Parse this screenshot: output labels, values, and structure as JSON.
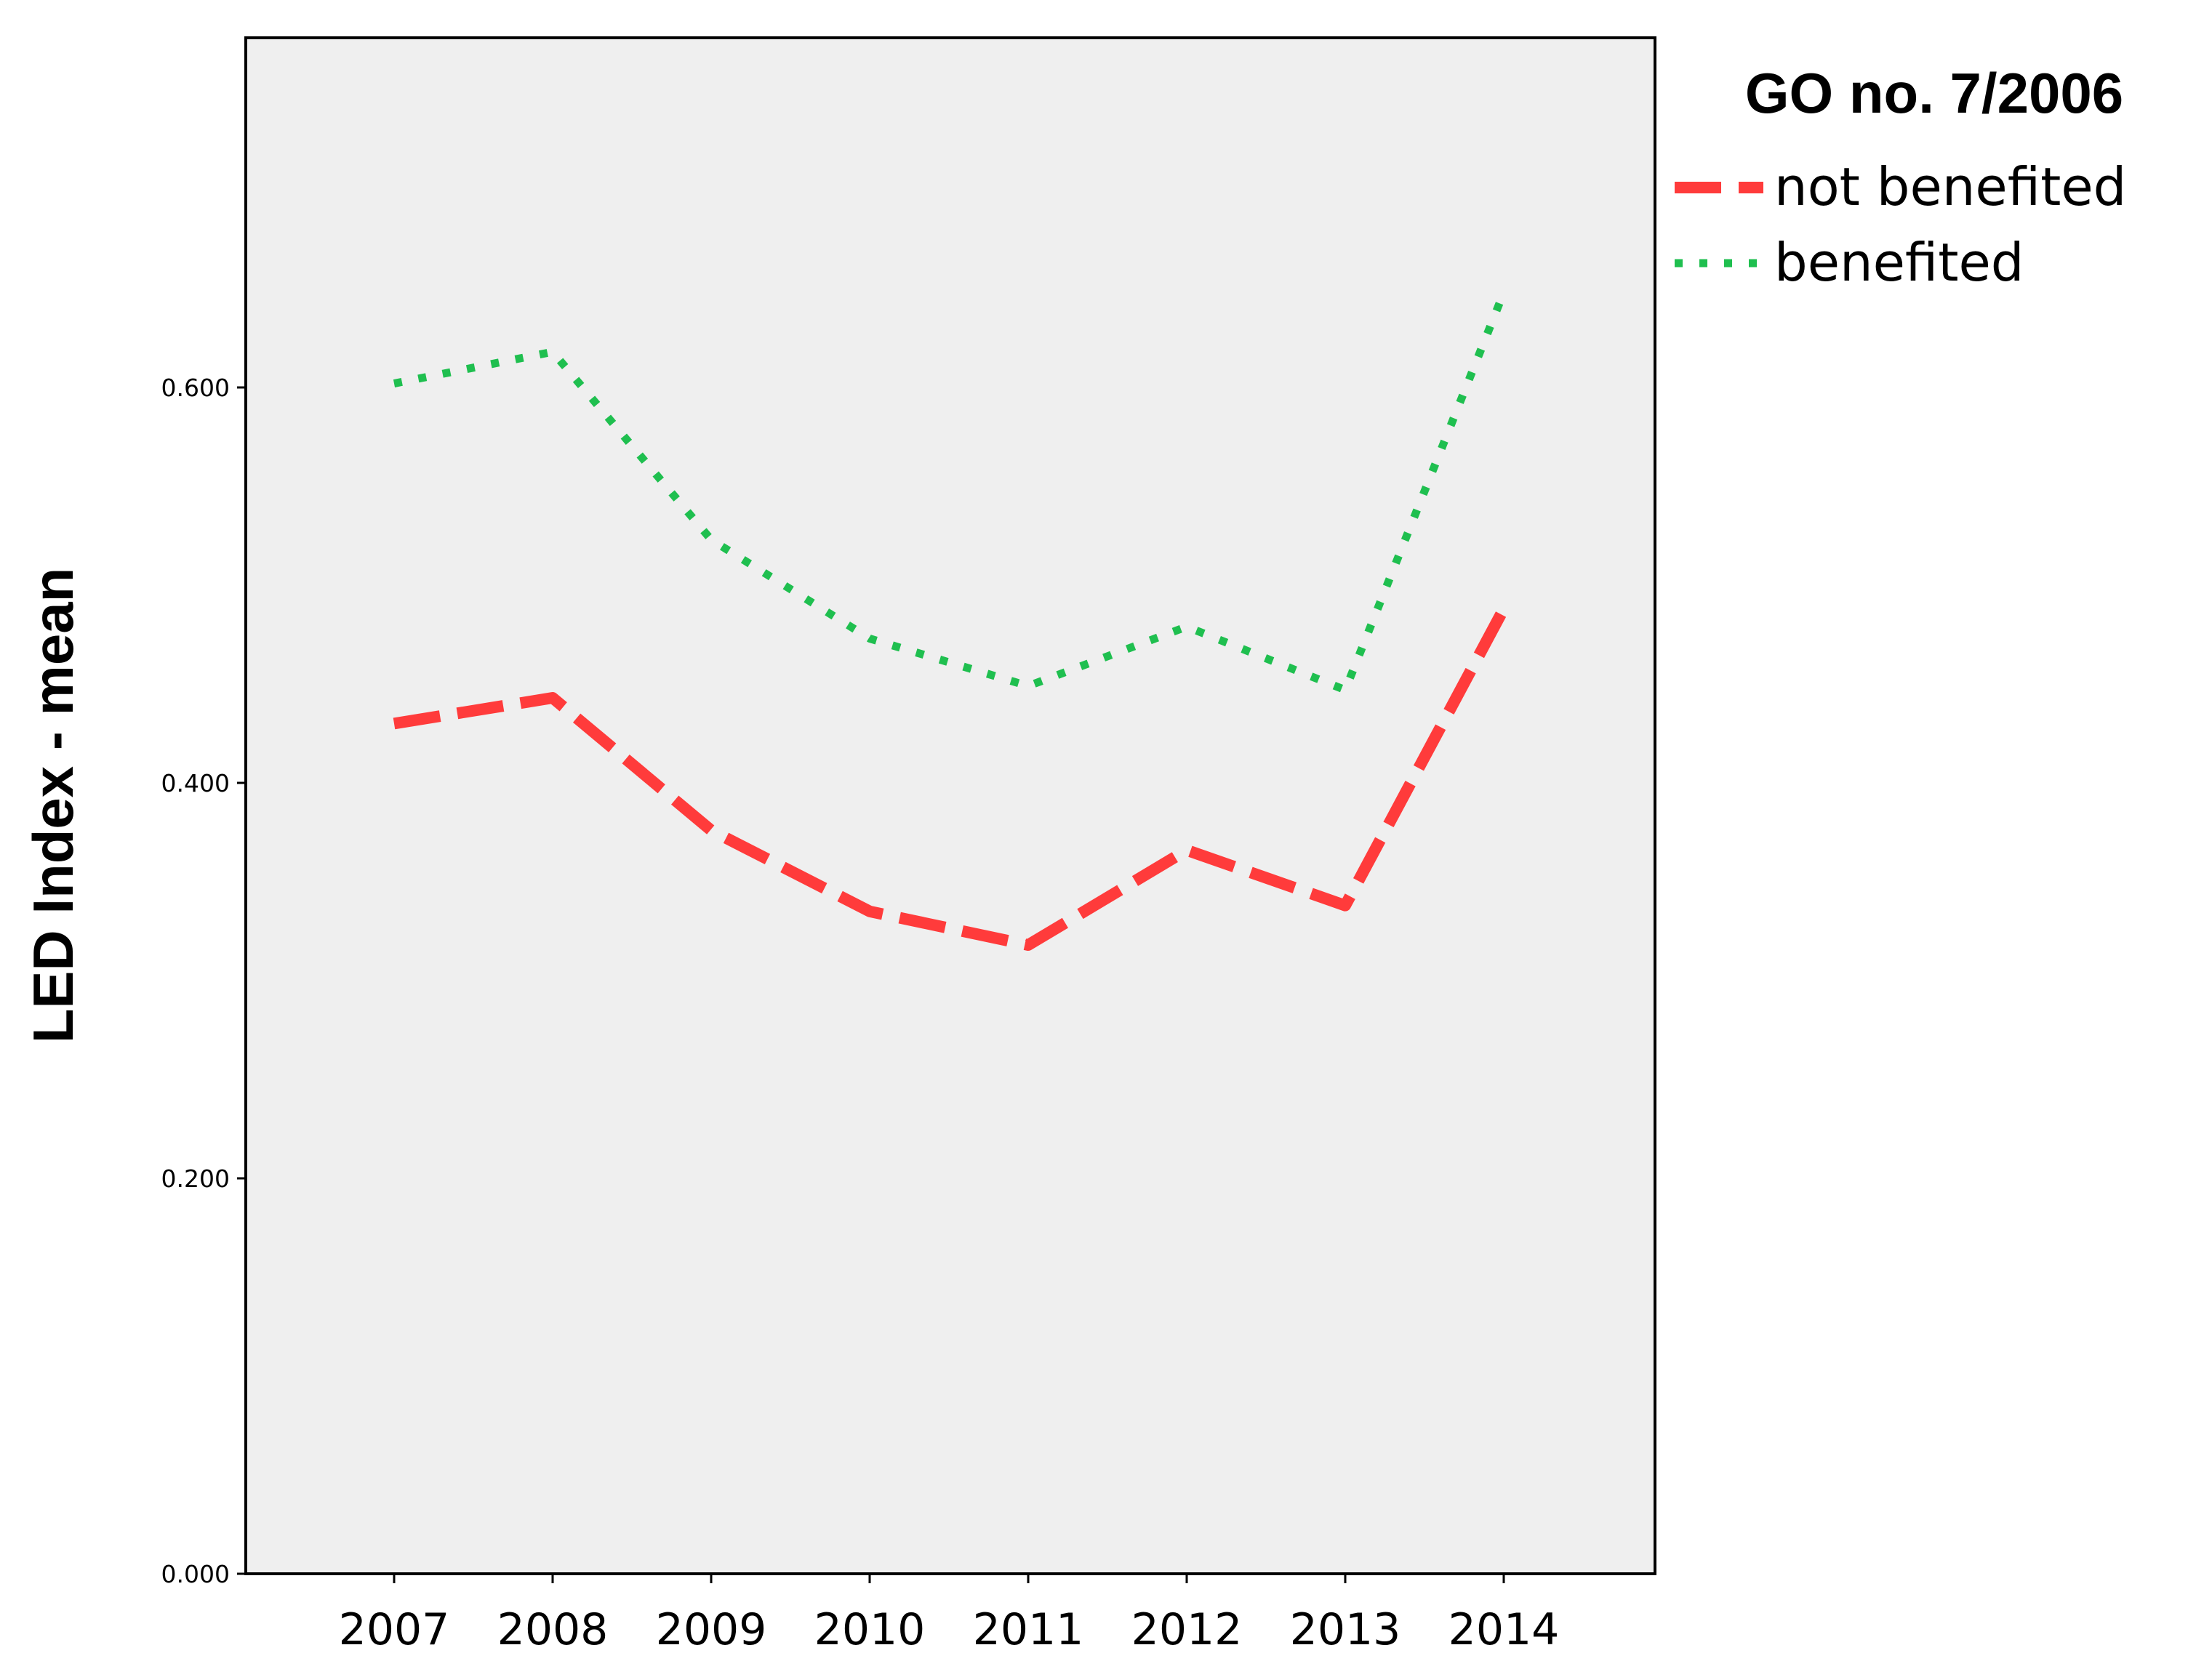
{
  "chart_data": {
    "type": "line",
    "title": "",
    "xlabel": "",
    "ylabel": "LED Index - mean",
    "x": [
      "2007",
      "2008",
      "2009",
      "2010",
      "2011",
      "2012",
      "2013",
      "2014"
    ],
    "ylim": [
      0,
      0.7
    ],
    "y_ticks": [
      "0.000",
      "0.200",
      "0.400",
      "0.600"
    ],
    "grid": false,
    "legend": {
      "title": "GO no. 7/2006",
      "position": "top-right, outside plot"
    },
    "series": [
      {
        "name": "not benefited",
        "color": "#ff3b3b",
        "style": "dashed",
        "values": [
          0.43,
          0.443,
          0.376,
          0.335,
          0.318,
          0.366,
          0.338,
          0.488
        ]
      },
      {
        "name": "benefited",
        "color": "#1fbf4f",
        "style": "dotted",
        "values": [
          0.602,
          0.618,
          0.523,
          0.473,
          0.449,
          0.479,
          0.447,
          0.648
        ]
      }
    ],
    "plot_background": "#efefef"
  }
}
